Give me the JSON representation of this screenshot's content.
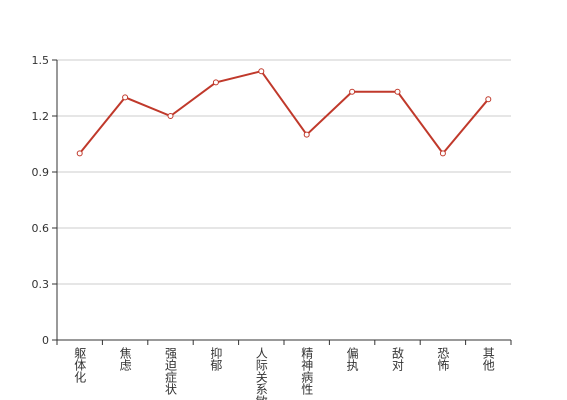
{
  "chart_data": {
    "type": "line",
    "categories": [
      "躯体化",
      "焦虑",
      "强迫症状",
      "抑郁",
      "人际关系敏感",
      "精神病性",
      "偏执",
      "敌对",
      "恐怖",
      "其他"
    ],
    "values": [
      1.0,
      1.3,
      1.2,
      1.38,
      1.44,
      1.1,
      1.33,
      1.33,
      1.0,
      1.29
    ],
    "color": "#c0392b",
    "ylim": [
      0,
      1.5
    ],
    "yticks": [
      0,
      0.3,
      0.6,
      0.9,
      1.2,
      1.5
    ],
    "grid": true
  }
}
